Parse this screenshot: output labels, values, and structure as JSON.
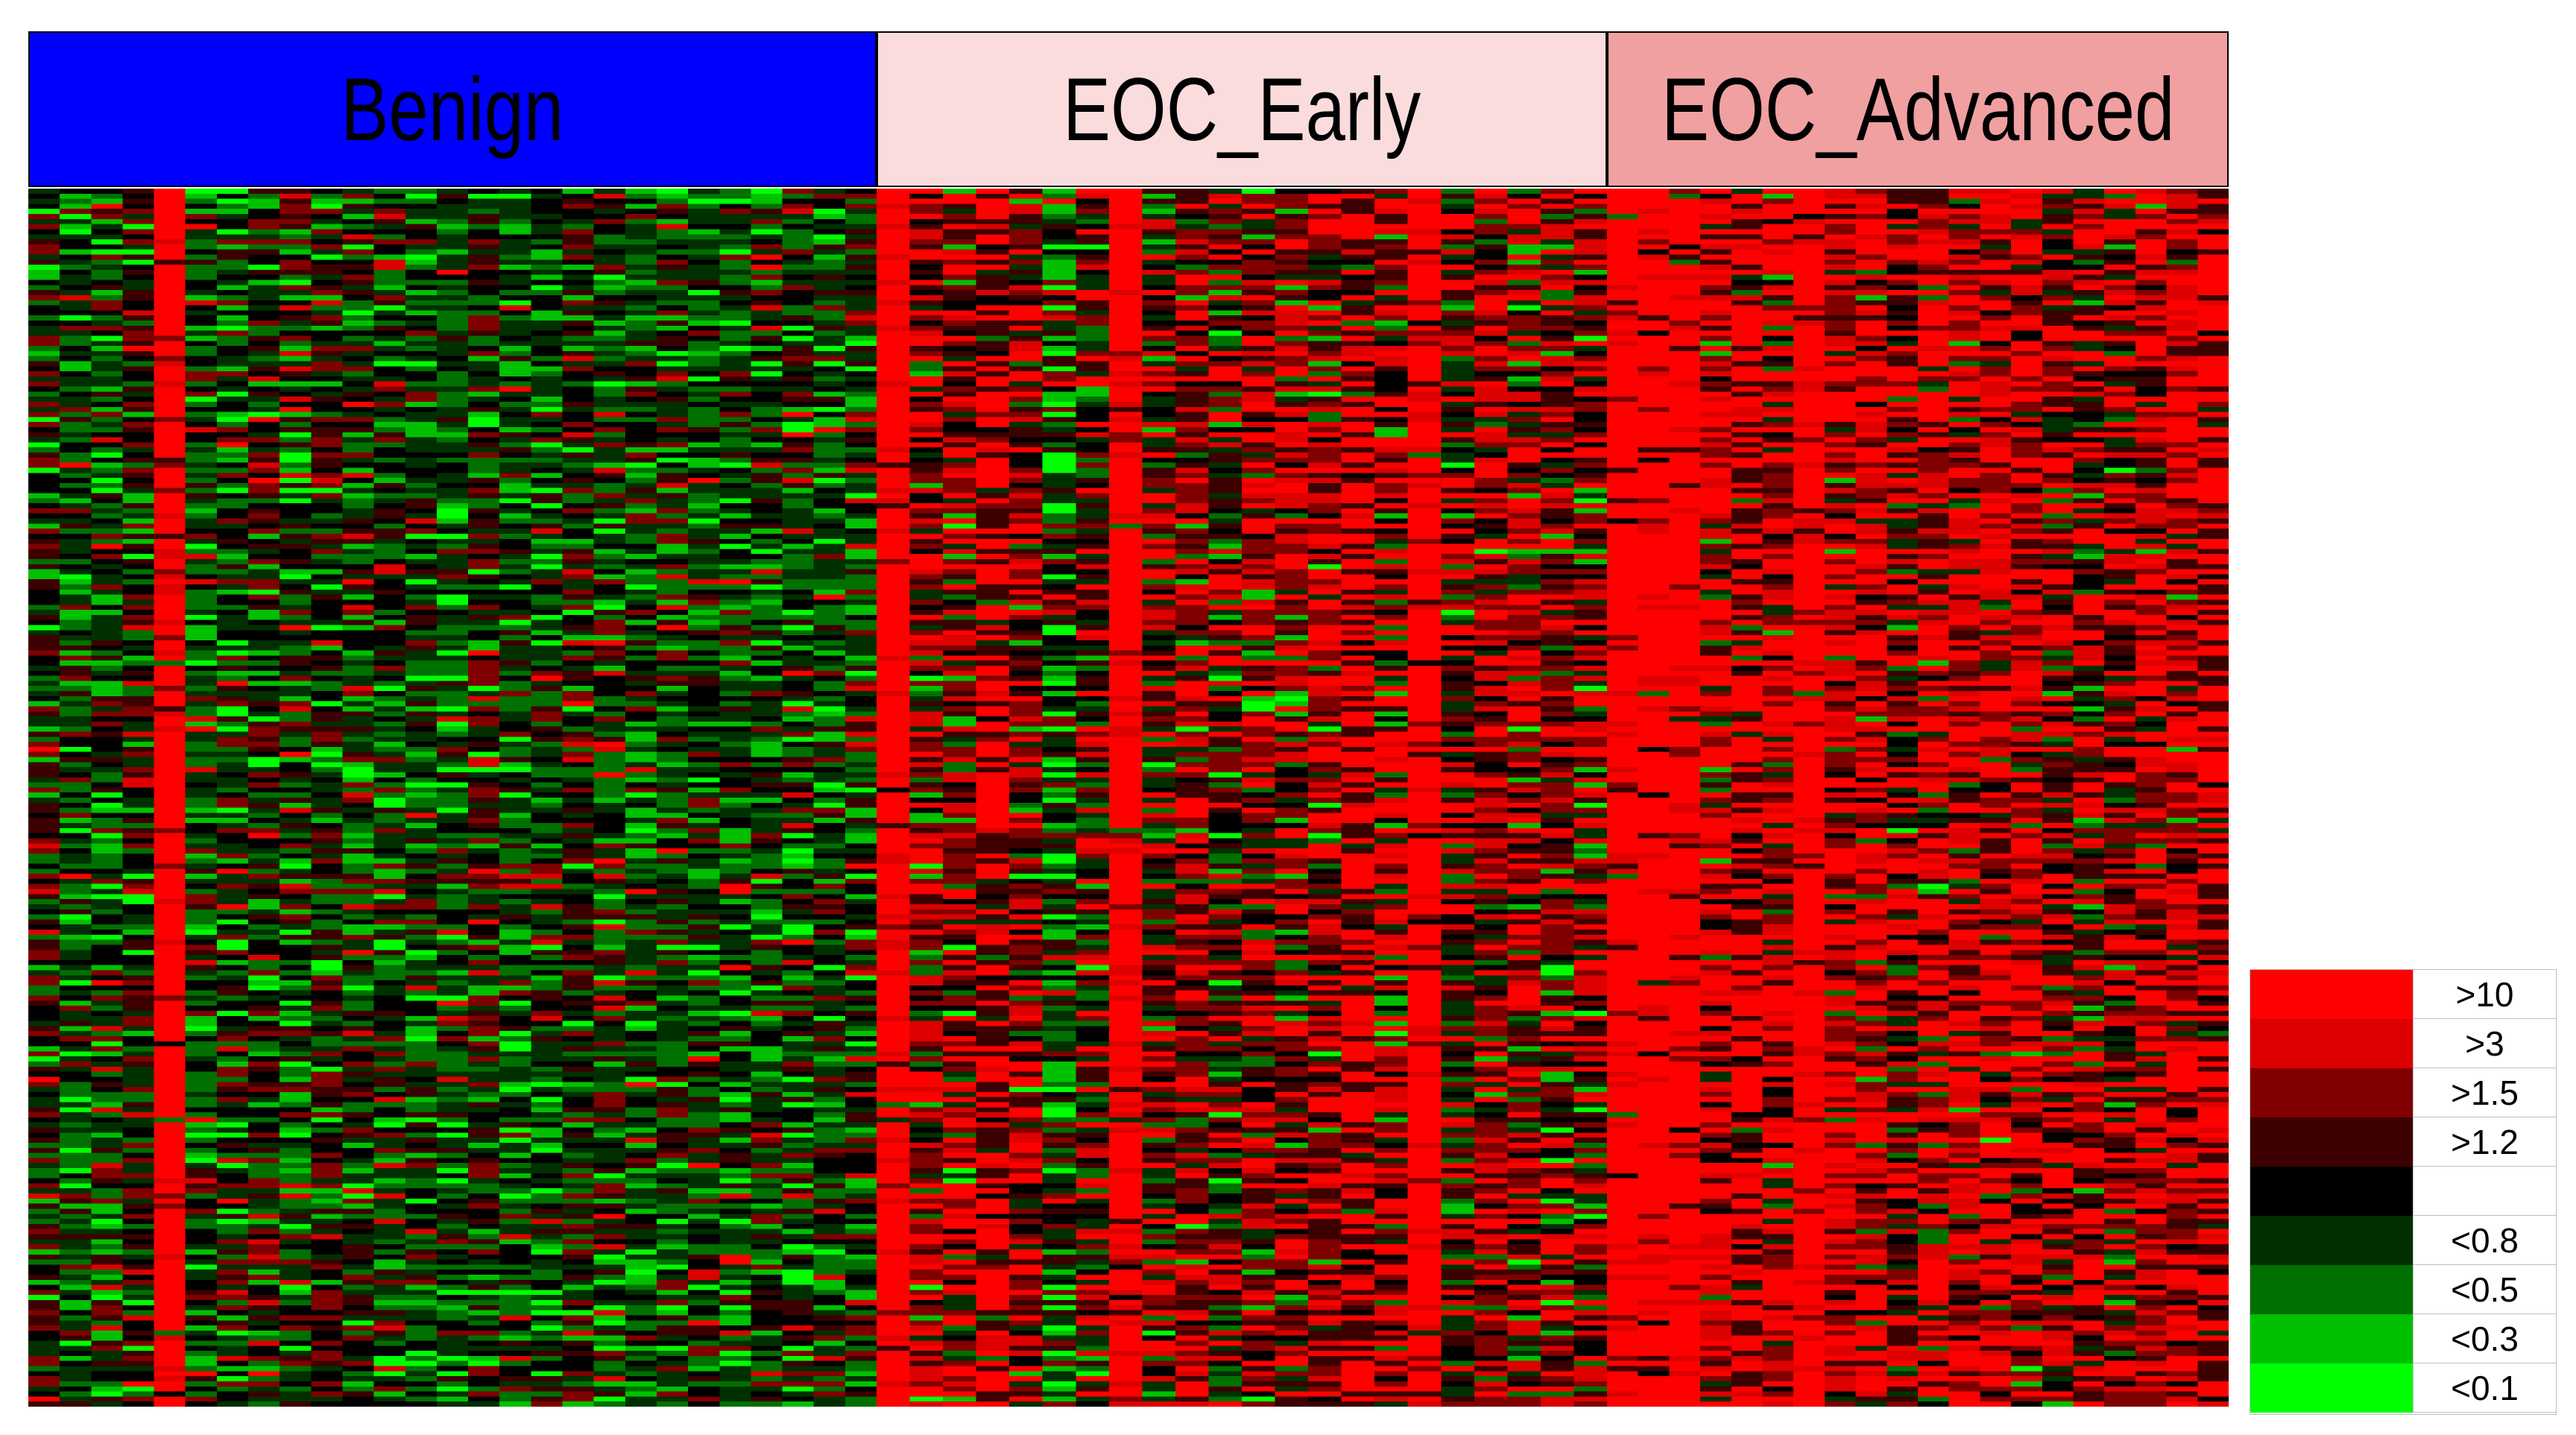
{
  "chart_data": {
    "type": "heatmap",
    "title": "",
    "groups": [
      {
        "name": "Benign",
        "columns": 27,
        "color": "#0000ff",
        "profile": "mostly_down"
      },
      {
        "name": "EOC_Early",
        "columns": 22,
        "color": "#fadcdc",
        "profile": "mixed_up"
      },
      {
        "name": "EOC_Advanced",
        "columns": 20,
        "color": "#f0a0a0",
        "profile": "strongly_up"
      }
    ],
    "rows": 240,
    "high_column_note": "Benign column 5 and several EOC columns show uniformly high expression (>10)",
    "color_scale": [
      {
        "label": ">10",
        "color": "#ff0000"
      },
      {
        "label": ">3",
        "color": "#dc0000"
      },
      {
        "label": ">1.5",
        "color": "#800000"
      },
      {
        "label": ">1.2",
        "color": "#3c0000"
      },
      {
        "label": "",
        "color": "#000000"
      },
      {
        "label": "<0.8",
        "color": "#003000"
      },
      {
        "label": "<0.5",
        "color": "#007000"
      },
      {
        "label": "<0.3",
        "color": "#00c000"
      },
      {
        "label": "<0.1",
        "color": "#00ff00"
      }
    ]
  }
}
